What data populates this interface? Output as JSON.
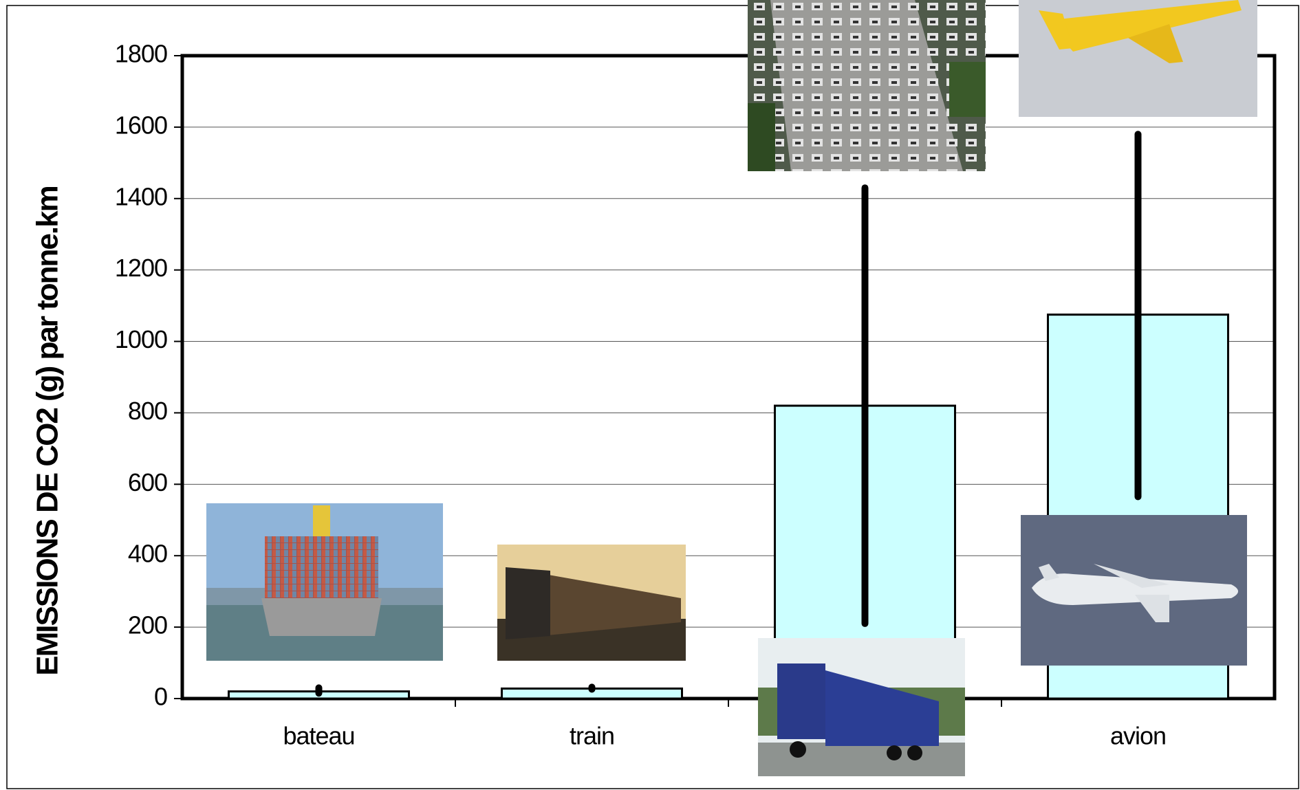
{
  "chart_data": {
    "type": "bar",
    "y_label": "EMISSIONS DE CO2 (g) par tonne.km",
    "categories": [
      "bateau",
      "train",
      null,
      "avion"
    ],
    "values": [
      20,
      28,
      820,
      1075
    ],
    "error_low": [
      15,
      26,
      210,
      565
    ],
    "error_high": [
      30,
      32,
      1430,
      1580
    ],
    "color": "#ccffff",
    "ylim": [
      0,
      1800
    ],
    "yticks": [
      0,
      200,
      400,
      600,
      800,
      1000,
      1200,
      1400,
      1600,
      1800
    ],
    "grid": true
  }
}
